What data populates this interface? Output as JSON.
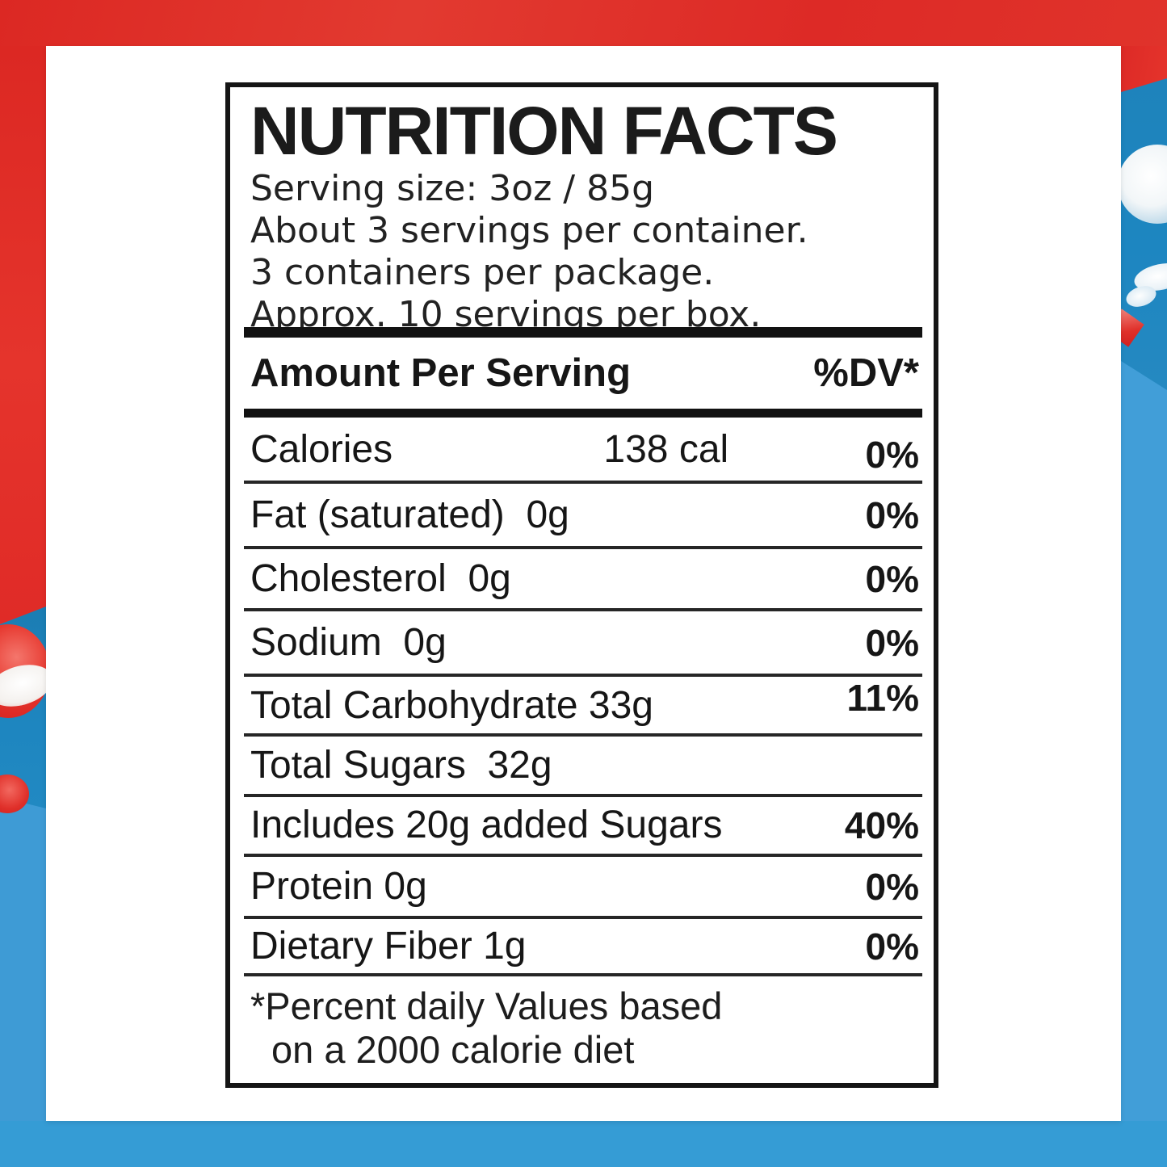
{
  "background": {
    "red": "#E02B27",
    "teal_blue": "#1E84BD",
    "light_blue": "#3E9BD5",
    "card_white": "#FFFFFF",
    "decor": [
      "red-candy-left-large",
      "red-candy-left-small",
      "white-bubble-right-large",
      "white-bubble-right-mid",
      "white-bubble-right-small",
      "red-candy-right-corner"
    ]
  },
  "label": {
    "title": "NUTRITION FACTS",
    "serving_lines": [
      "Serving size: 3oz / 85g",
      "About 3 servings per container.",
      "3 containers per package.",
      "Approx. 10 servings per box."
    ],
    "header": {
      "amount": "Amount Per Serving",
      "dv": "%DV*"
    },
    "rows": [
      {
        "label": "Calories",
        "mid": "138 cal",
        "dv": "0%"
      },
      {
        "label": "Fat (saturated)  0g",
        "dv": "0%"
      },
      {
        "label": "Cholesterol  0g",
        "dv": "0%"
      },
      {
        "label": "Sodium  0g",
        "dv": "0%"
      },
      {
        "label": "Total Carbohydrate 33g",
        "dv": "11%"
      },
      {
        "label": "Total Sugars  32g",
        "dv": ""
      },
      {
        "label": "Includes 20g added Sugars",
        "dv": "40%"
      },
      {
        "label": "Protein 0g",
        "dv": "0%"
      },
      {
        "label": "Dietary Fiber 1g",
        "dv": "0%"
      }
    ],
    "footnote": [
      "*Percent daily Values based",
      "on a 2000 calorie diet"
    ]
  }
}
